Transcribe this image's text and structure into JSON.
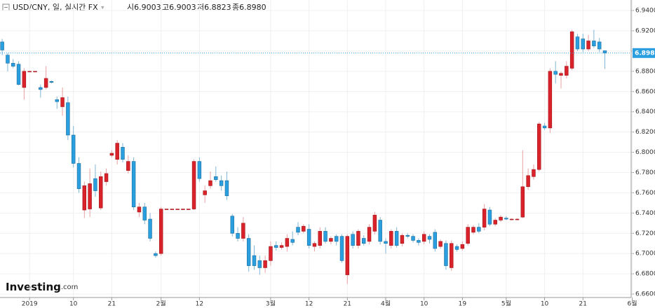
{
  "header": {
    "symbol": "USD/CNY, 일, 실시간 FX",
    "ohlc": [
      {
        "label": "시",
        "value": "6.9003"
      },
      {
        "label": "고",
        "value": "6.9003"
      },
      {
        "label": "저",
        "value": "6.8823"
      },
      {
        "label": "종",
        "value": "6.8980"
      }
    ]
  },
  "logo": {
    "brand": "Investing",
    "suffix": ".com"
  },
  "chart_data": {
    "type": "candlestick",
    "up_color": "#d9222a",
    "down_color": "#2a9fdf",
    "grid": true,
    "current_price": {
      "value": 6.898,
      "label": "6.8980"
    },
    "current_color": "#2a9fdf",
    "xlim": [
      -0.4,
      114.8
    ],
    "xticks": [
      {
        "value": 5,
        "label": "2019"
      },
      {
        "value": 13,
        "label": "10"
      },
      {
        "value": 20,
        "label": "21"
      },
      {
        "value": 29,
        "label": "2월"
      },
      {
        "value": 36,
        "label": "12"
      },
      {
        "value": 49,
        "label": "3월"
      },
      {
        "value": 56,
        "label": "12"
      },
      {
        "value": 63,
        "label": "21"
      },
      {
        "value": 70,
        "label": "4월"
      },
      {
        "value": 77,
        "label": "10"
      },
      {
        "value": 84,
        "label": "19"
      },
      {
        "value": 92,
        "label": "5월"
      },
      {
        "value": 99,
        "label": "10"
      },
      {
        "value": 106,
        "label": "21"
      },
      {
        "value": 115,
        "label": "6월"
      }
    ],
    "ylim": [
      6.6566,
      6.9504
    ],
    "yticks": [
      {
        "value": 6.66,
        "label": "6.6600"
      },
      {
        "value": 6.68,
        "label": "6.6800"
      },
      {
        "value": 6.7,
        "label": "6.7000"
      },
      {
        "value": 6.72,
        "label": "6.7200"
      },
      {
        "value": 6.74,
        "label": "6.7400"
      },
      {
        "value": 6.76,
        "label": "6.7600"
      },
      {
        "value": 6.78,
        "label": "6.7800"
      },
      {
        "value": 6.8,
        "label": "6.8000"
      },
      {
        "value": 6.82,
        "label": "6.8200"
      },
      {
        "value": 6.84,
        "label": "6.8400"
      },
      {
        "value": 6.86,
        "label": "6.8600"
      },
      {
        "value": 6.88,
        "label": "6.8800"
      },
      {
        "value": 6.9,
        "label": "6.9000"
      },
      {
        "value": 6.92,
        "label": "6.9200"
      },
      {
        "value": 6.94,
        "label": "6.9400"
      }
    ],
    "open": [
      6.909,
      6.896,
      6.888,
      6.887,
      6.864,
      6.88,
      6.88,
      6.864,
      6.864,
      6.87,
      6.852,
      6.845,
      6.849,
      6.817,
      6.789,
      6.743,
      6.744,
      6.774,
      6.745,
      6.771,
      6.797,
      6.793,
      6.805,
      6.782,
      6.791,
      6.741,
      6.746,
      6.734,
      6.7,
      6.7,
      6.744,
      6.744,
      6.744,
      6.744,
      6.744,
      6.744,
      6.791,
      6.758,
      6.767,
      6.776,
      6.772,
      6.772,
      6.737,
      6.72,
      6.715,
      6.715,
      6.698,
      6.693,
      6.686,
      6.693,
      6.708,
      6.706,
      6.707,
      6.714,
      6.726,
      6.722,
      6.724,
      6.707,
      6.708,
      6.722,
      6.712,
      6.717,
      6.717,
      6.679,
      6.719,
      6.708,
      6.715,
      6.712,
      6.722,
      6.733,
      6.712,
      6.708,
      6.722,
      6.71,
      6.718,
      6.717,
      6.713,
      6.712,
      6.717,
      6.721,
      6.707,
      6.71,
      6.686,
      6.707,
      6.705,
      6.71,
      6.721,
      6.726,
      6.726,
      6.743,
      6.729,
      6.733,
      6.735,
      6.734,
      6.734,
      6.736,
      6.766,
      6.776,
      6.783,
      6.826,
      6.824,
      6.88,
      6.876,
      6.876,
      6.883,
      6.914,
      6.912,
      6.902,
      6.91,
      6.909,
      6.9003
    ],
    "high": [
      6.912,
      6.898,
      6.892,
      6.89,
      6.883,
      6.88,
      6.88,
      6.867,
      6.885,
      6.871,
      6.855,
      6.864,
      6.855,
      6.826,
      6.795,
      6.771,
      6.784,
      6.788,
      6.781,
      6.784,
      6.802,
      6.812,
      6.809,
      6.797,
      6.795,
      6.75,
      6.75,
      6.74,
      6.702,
      6.746,
      6.744,
      6.744,
      6.744,
      6.744,
      6.744,
      6.793,
      6.795,
      6.767,
      6.781,
      6.786,
      6.777,
      6.781,
      6.739,
      6.726,
      6.736,
      6.719,
      6.708,
      6.698,
      6.698,
      6.712,
      6.712,
      6.711,
      6.719,
      6.722,
      6.731,
      6.729,
      6.729,
      6.712,
      6.726,
      6.726,
      6.717,
      6.719,
      6.719,
      6.719,
      6.722,
      6.724,
      6.718,
      6.729,
      6.741,
      6.736,
      6.715,
      6.724,
      6.726,
      6.72,
      6.72,
      6.719,
      6.715,
      6.722,
      6.719,
      6.724,
      6.714,
      6.713,
      6.713,
      6.709,
      6.712,
      6.729,
      6.728,
      6.73,
      6.749,
      6.746,
      6.735,
      6.738,
      6.737,
      6.735,
      6.735,
      6.802,
      6.784,
      6.788,
      6.83,
      6.829,
      6.883,
      6.89,
      6.88,
      6.89,
      6.921,
      6.917,
      6.917,
      6.916,
      6.921,
      6.913,
      6.9003
    ],
    "low": [
      6.896,
      6.88,
      6.883,
      6.866,
      6.852,
      6.88,
      6.88,
      6.854,
      6.862,
      6.868,
      6.843,
      6.836,
      6.812,
      6.785,
      6.76,
      6.735,
      6.736,
      6.756,
      6.743,
      6.767,
      6.795,
      6.788,
      6.79,
      6.779,
      6.743,
      6.736,
      6.729,
      6.712,
      6.696,
      6.698,
      6.744,
      6.744,
      6.744,
      6.744,
      6.744,
      6.743,
      6.771,
      6.75,
      6.764,
      6.771,
      6.762,
      6.753,
      6.717,
      6.712,
      6.712,
      6.682,
      6.684,
      6.679,
      6.681,
      6.688,
      6.703,
      6.704,
      6.702,
      6.708,
      6.718,
      6.72,
      6.705,
      6.702,
      6.705,
      6.71,
      6.709,
      6.708,
      6.691,
      6.67,
      6.705,
      6.705,
      6.708,
      6.709,
      6.719,
      6.709,
      6.7,
      6.705,
      6.706,
      6.707,
      6.715,
      6.711,
      6.708,
      6.709,
      6.71,
      6.702,
      6.705,
      6.684,
      6.683,
      6.702,
      6.703,
      6.708,
      6.719,
      6.72,
      6.723,
      6.727,
      6.727,
      6.731,
      6.733,
      6.733,
      6.733,
      6.735,
      6.763,
      6.773,
      6.781,
      6.822,
      6.819,
      6.868,
      6.863,
      6.873,
      6.881,
      6.9,
      6.899,
      6.9,
      6.903,
      6.899,
      6.8823
    ],
    "close": [
      6.901,
      6.888,
      6.885,
      6.867,
      6.88,
      6.88,
      6.88,
      6.862,
      6.873,
      6.869,
      6.85,
      6.854,
      6.817,
      6.789,
      6.764,
      6.767,
      6.769,
      6.762,
      6.776,
      6.779,
      6.799,
      6.809,
      6.793,
      6.791,
      6.746,
      6.746,
      6.733,
      6.715,
      6.698,
      6.744,
      6.744,
      6.744,
      6.744,
      6.744,
      6.744,
      6.791,
      6.774,
      6.762,
      6.772,
      6.773,
      6.767,
      6.757,
      6.72,
      6.715,
      6.73,
      6.688,
      6.688,
      6.686,
      6.693,
      6.707,
      6.706,
      6.708,
      6.715,
      6.711,
      6.721,
      6.727,
      6.708,
      6.71,
      6.722,
      6.712,
      6.715,
      6.712,
      6.693,
      6.717,
      6.708,
      6.722,
      6.71,
      6.726,
      6.738,
      6.712,
      6.71,
      6.722,
      6.708,
      6.718,
      6.717,
      6.713,
      6.711,
      6.719,
      6.714,
      6.705,
      6.712,
      6.688,
      6.71,
      6.704,
      6.709,
      6.726,
      6.726,
      6.722,
      6.744,
      6.729,
      6.733,
      6.736,
      6.734,
      6.734,
      6.734,
      6.766,
      6.777,
      6.783,
      6.828,
      6.824,
      6.88,
      6.877,
      6.878,
      6.885,
      6.919,
      6.902,
      6.902,
      6.91,
      6.905,
      6.902,
      6.898
    ]
  }
}
